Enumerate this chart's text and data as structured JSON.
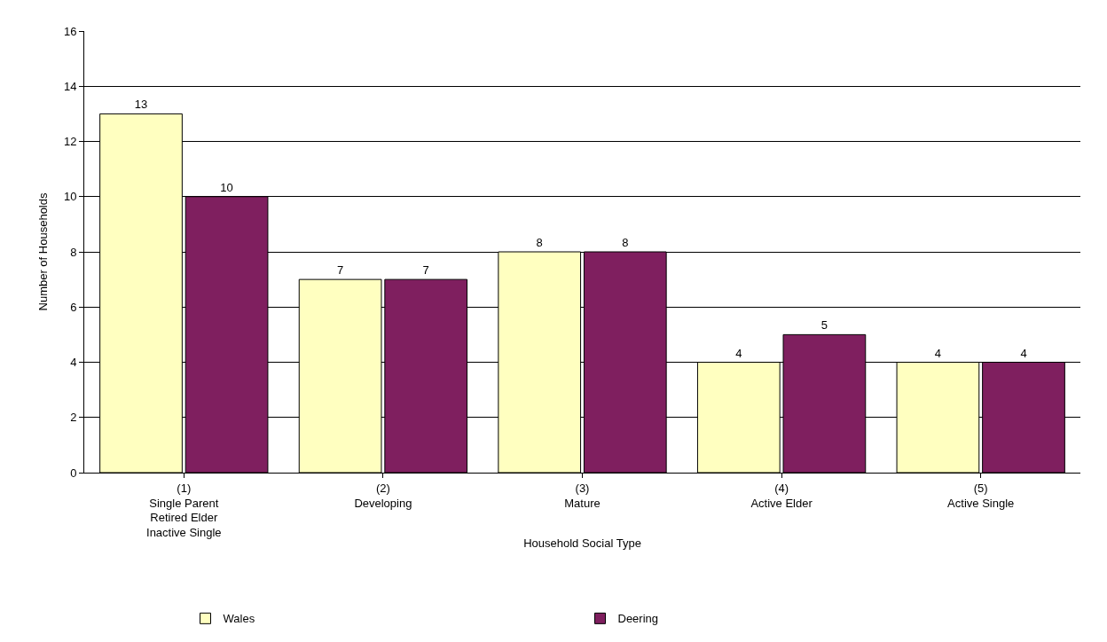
{
  "chart_data": {
    "type": "bar",
    "xlabel": "Household Social Type",
    "ylabel": "Number of Households",
    "categories": [
      "(1)\nSingle Parent\nRetired Elder\nInactive Single",
      "(2)\nDeveloping",
      "(3)\nMature",
      "(4)\nActive Elder",
      "(5)\nActive Single"
    ],
    "series": [
      {
        "name": "Wales",
        "color": "#ffffc0",
        "values": [
          13,
          7,
          8,
          4,
          4
        ]
      },
      {
        "name": "Deering",
        "color": "#7f1f5f",
        "values": [
          10,
          7,
          8,
          5,
          4
        ]
      }
    ],
    "ylim": [
      0,
      16
    ],
    "yticks": [
      0,
      2,
      4,
      6,
      8,
      10,
      12,
      14,
      16
    ],
    "grid": "y",
    "legend": "bottom",
    "data_labels": true
  }
}
